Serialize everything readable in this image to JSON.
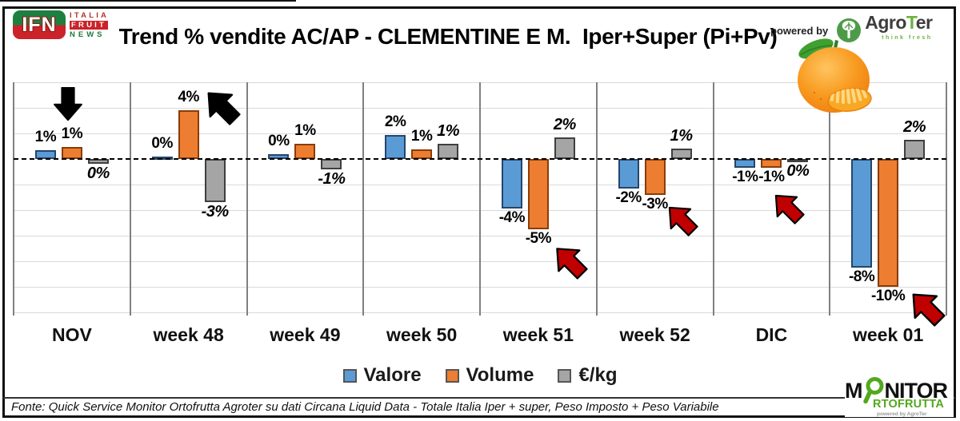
{
  "title": "Trend % vendite AC/AP - CLEMENTINE E M.  Iper+Super (Pi+Pv)",
  "branding": {
    "ifn": {
      "badge": "IFN",
      "italia": "ITALIA",
      "fruit": "FRUIT",
      "news": "NEWS"
    },
    "powered_by": "powered by",
    "agroter": {
      "prefix": "Agro",
      "t": "T",
      "suffix": "er",
      "tagline": "think fresh"
    },
    "monitor": {
      "m": "M",
      "nitor": "NITOR",
      "line2": "RTOFRUTTA",
      "powered": "powered by AgroTer"
    }
  },
  "chart_data": {
    "type": "bar",
    "categories": [
      "NOV",
      "week 48",
      "week 49",
      "week 50",
      "week 51",
      "week 52",
      "DIC",
      "week 01"
    ],
    "series": [
      {
        "name": "Valore",
        "color": "#5B9BD5",
        "border": "#24466b",
        "values": [
          1,
          0,
          0,
          2,
          -4,
          -2,
          -1,
          -8
        ],
        "labels": [
          "1%",
          "0%",
          "0%",
          "2%",
          "-4%",
          "-2%",
          "-1%",
          "-8%"
        ],
        "render_values": [
          0.7,
          0.2,
          0.4,
          1.9,
          -3.9,
          -2.3,
          -0.7,
          -8.5
        ]
      },
      {
        "name": "Volume",
        "color": "#ED7D31",
        "border": "#8a3c06",
        "values": [
          1,
          4,
          1,
          1,
          -5,
          -3,
          -1,
          -10
        ],
        "labels": [
          "1%",
          "4%",
          "1%",
          "1%",
          "-5%",
          "-3%",
          "-1%",
          "-10%"
        ],
        "render_values": [
          0.95,
          3.8,
          1.2,
          0.75,
          -5.5,
          -2.8,
          -0.7,
          -10
        ]
      },
      {
        "name": "€/kg",
        "color": "#A5A5A5",
        "border": "#3f3f3f",
        "values": [
          0,
          -3,
          -1,
          1,
          2,
          1,
          0,
          2
        ],
        "labels": [
          "0%",
          "-3%",
          "-1%",
          "1%",
          "2%",
          "1%",
          "0%",
          "2%"
        ],
        "render_values": [
          -0.4,
          -3.4,
          -0.8,
          1.2,
          1.7,
          0.8,
          -0.15,
          1.5
        ]
      }
    ],
    "ylim": [
      -12,
      6
    ],
    "gridline_step_pct": 2,
    "zero_line": "dashed",
    "grid": true,
    "legend_position": "bottom",
    "annotations": [
      {
        "shape": "block-arrow",
        "direction": "down",
        "color": "#000000",
        "category": "NOV"
      },
      {
        "shape": "block-arrow",
        "direction": "up-left",
        "color": "#000000",
        "category": "week 48"
      },
      {
        "shape": "block-arrow",
        "direction": "up-left",
        "color": "#C00000",
        "category": "week 51"
      },
      {
        "shape": "block-arrow",
        "direction": "up-left",
        "color": "#C00000",
        "category": "week 52"
      },
      {
        "shape": "block-arrow",
        "direction": "up-left",
        "color": "#C00000",
        "category": "DIC"
      },
      {
        "shape": "block-arrow",
        "direction": "up-left",
        "color": "#C00000",
        "category": "week 01"
      }
    ]
  },
  "legend": [
    {
      "label": "Valore",
      "color": "#5B9BD5"
    },
    {
      "label": "Volume",
      "color": "#ED7D31"
    },
    {
      "label": "€/kg",
      "color": "#A5A5A5"
    }
  ],
  "footer": "Fonte: Quick Service Monitor Ortofrutta Agroter su dati Circana Liquid Data - Totale Italia Iper + super, Peso Imposto + Peso Variabile"
}
